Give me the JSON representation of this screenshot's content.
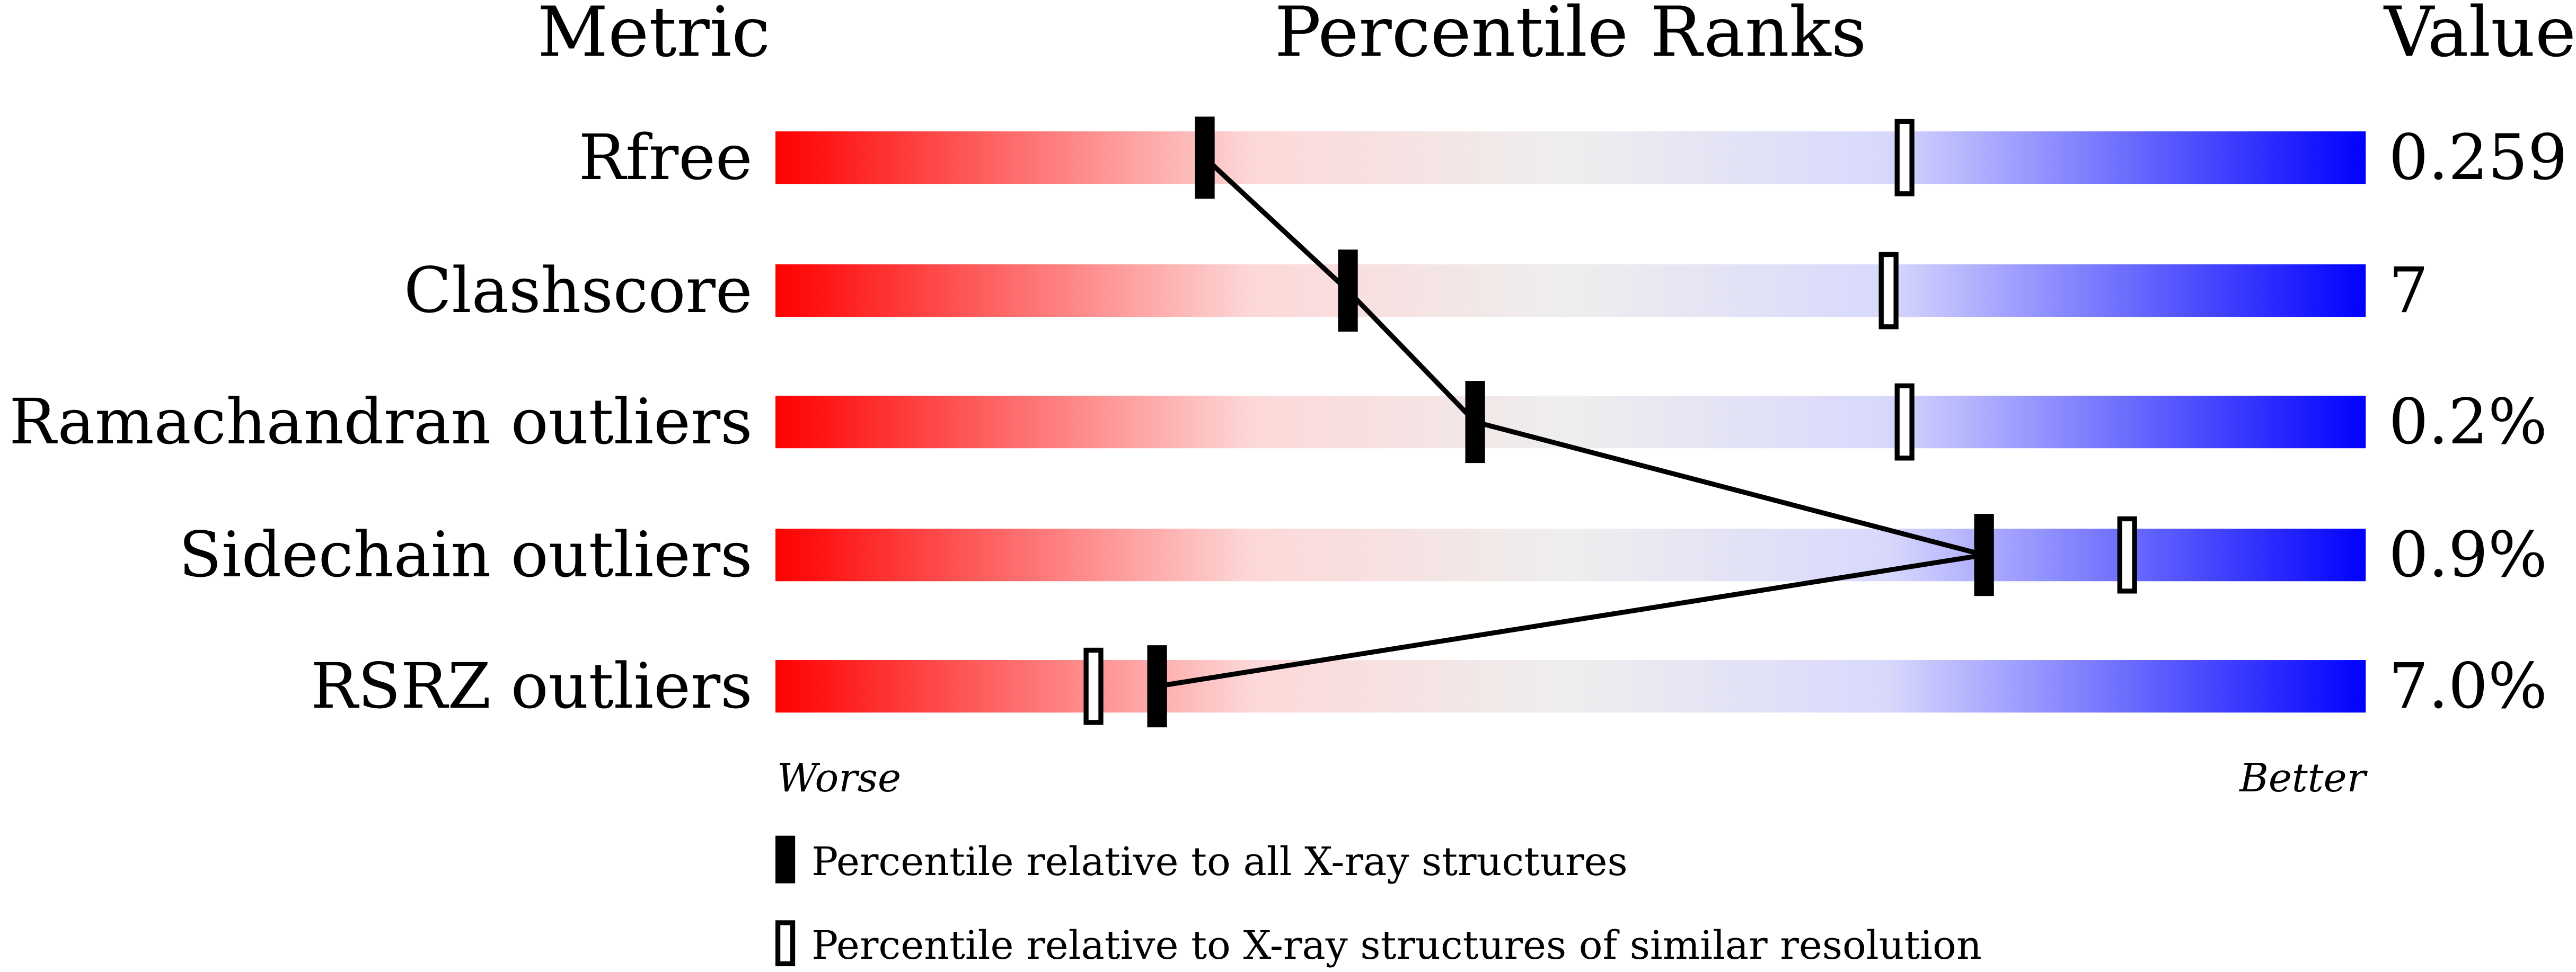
{
  "chart_data": {
    "type": "percentile-slider",
    "headers": {
      "metric": "Metric",
      "ranks": "Percentile Ranks",
      "value": "Value"
    },
    "range": [
      0,
      100
    ],
    "axis": {
      "left": "Worse",
      "right": "Better"
    },
    "colors": {
      "worse": "#ff0000",
      "middle": "#eeeeee",
      "better": "#0000ff",
      "marker": "#000000"
    },
    "rows": [
      {
        "metric": "Rfree",
        "value": "0.259",
        "percentile_all": 27,
        "percentile_similar": 71
      },
      {
        "metric": "Clashscore",
        "value": "7",
        "percentile_all": 36,
        "percentile_similar": 70
      },
      {
        "metric": "Ramachandran outliers",
        "value": "0.2%",
        "percentile_all": 44,
        "percentile_similar": 71
      },
      {
        "metric": "Sidechain outliers",
        "value": "0.9%",
        "percentile_all": 76,
        "percentile_similar": 85
      },
      {
        "metric": "RSRZ outliers",
        "value": "7.0%",
        "percentile_all": 24,
        "percentile_similar": 20
      }
    ],
    "legend": [
      {
        "marker": "filled",
        "label": "Percentile relative to all X-ray structures"
      },
      {
        "marker": "hollow",
        "label": "Percentile relative to X-ray structures of similar resolution"
      }
    ]
  }
}
